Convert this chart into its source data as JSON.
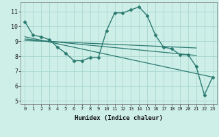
{
  "xlabel": "Humidex (Indice chaleur)",
  "ylabel": "",
  "bg_color": "#ceeee8",
  "grid_color": "#a8d8d0",
  "line_color": "#2a7a70",
  "xlim": [
    -0.5,
    23.5
  ],
  "ylim": [
    4.8,
    11.6
  ],
  "xtick_labels": [
    "0",
    "1",
    "2",
    "3",
    "4",
    "5",
    "6",
    "7",
    "8",
    "9",
    "10",
    "11",
    "12",
    "13",
    "14",
    "15",
    "16",
    "17",
    "18",
    "19",
    "20",
    "21",
    "22",
    "23"
  ],
  "ytick_values": [
    5,
    6,
    7,
    8,
    9,
    10,
    11
  ],
  "series_main": {
    "x": [
      0,
      1,
      2,
      3,
      4,
      5,
      6,
      7,
      8,
      9,
      10,
      11,
      12,
      13,
      14,
      15,
      16,
      17,
      18,
      19,
      20,
      21,
      22,
      23
    ],
    "y": [
      10.3,
      9.4,
      9.3,
      9.1,
      8.6,
      8.2,
      7.7,
      7.7,
      7.9,
      7.9,
      9.7,
      10.9,
      10.9,
      11.1,
      11.3,
      10.7,
      9.4,
      8.6,
      8.5,
      8.1,
      8.1,
      7.3,
      5.4,
      6.6
    ]
  },
  "series_lines": [
    {
      "x": [
        0,
        23
      ],
      "y": [
        9.3,
        6.6
      ]
    },
    {
      "x": [
        0,
        21
      ],
      "y": [
        9.15,
        8.05
      ]
    },
    {
      "x": [
        0,
        21
      ],
      "y": [
        9.05,
        8.55
      ]
    }
  ]
}
